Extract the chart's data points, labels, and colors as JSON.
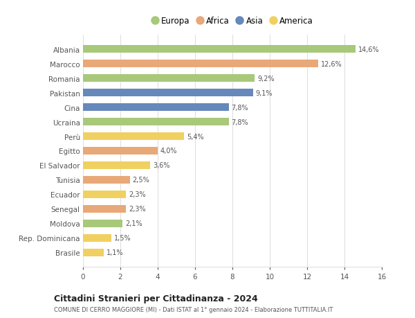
{
  "categories": [
    "Albania",
    "Marocco",
    "Romania",
    "Pakistan",
    "Cina",
    "Ucraina",
    "Perù",
    "Egitto",
    "El Salvador",
    "Tunisia",
    "Ecuador",
    "Senegal",
    "Moldova",
    "Rep. Dominicana",
    "Brasile"
  ],
  "values": [
    14.6,
    12.6,
    9.2,
    9.1,
    7.8,
    7.8,
    5.4,
    4.0,
    3.6,
    2.5,
    2.3,
    2.3,
    2.1,
    1.5,
    1.1
  ],
  "labels": [
    "14,6%",
    "12,6%",
    "9,2%",
    "9,1%",
    "7,8%",
    "7,8%",
    "5,4%",
    "4,0%",
    "3,6%",
    "2,5%",
    "2,3%",
    "2,3%",
    "2,1%",
    "1,5%",
    "1,1%"
  ],
  "colors": [
    "#a8c87a",
    "#e8a878",
    "#a8c87a",
    "#6688bb",
    "#6688bb",
    "#a8c87a",
    "#f0d060",
    "#e8a878",
    "#f0d060",
    "#e8a878",
    "#f0d060",
    "#e8a878",
    "#a8c87a",
    "#f0d060",
    "#f0d060"
  ],
  "legend_labels": [
    "Europa",
    "Africa",
    "Asia",
    "America"
  ],
  "legend_colors": [
    "#a8c87a",
    "#e8a878",
    "#6688bb",
    "#f0d060"
  ],
  "title": "Cittadini Stranieri per Cittadinanza - 2024",
  "subtitle": "COMUNE DI CERRO MAGGIORE (MI) - Dati ISTAT al 1° gennaio 2024 - Elaborazione TUTTITALIA.IT",
  "xlim": [
    0,
    16
  ],
  "xticks": [
    0,
    2,
    4,
    6,
    8,
    10,
    12,
    14,
    16
  ],
  "background_color": "#ffffff",
  "grid_color": "#e0e0e0",
  "bar_height": 0.55
}
